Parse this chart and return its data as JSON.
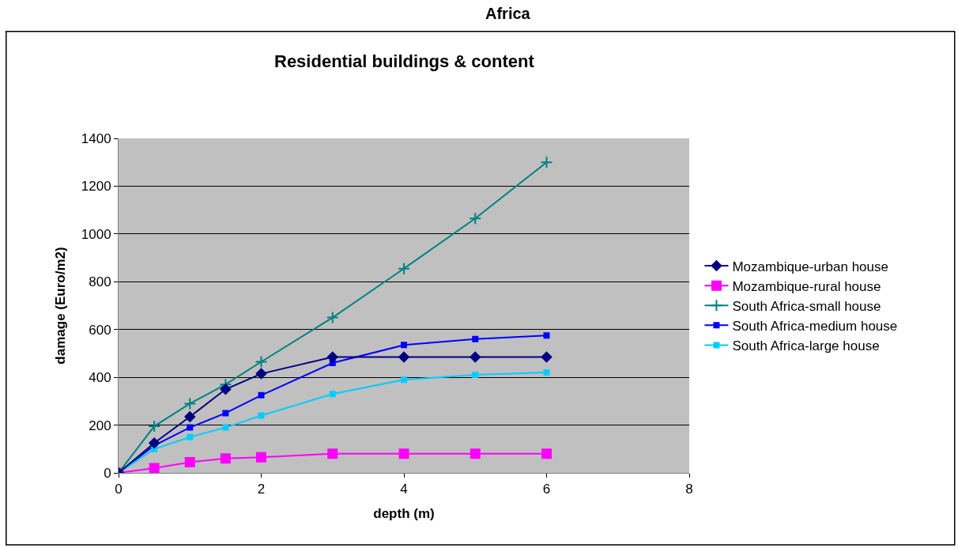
{
  "chart_data": {
    "type": "line",
    "title": "Africa",
    "subtitle": "Residential buildings & content",
    "xlabel": "depth (m)",
    "ylabel": "damage (Euro/m2)",
    "x": [
      0,
      0.5,
      1,
      1.5,
      2,
      3,
      4,
      5,
      6
    ],
    "series": [
      {
        "name": "Mozambique-urban house",
        "color": "#000080",
        "marker": "diamond",
        "values": [
          0,
          125,
          235,
          350,
          415,
          485,
          485,
          485,
          485
        ]
      },
      {
        "name": "Mozambique-rural house",
        "color": "#ff00ff",
        "marker": "square",
        "values": [
          0,
          20,
          45,
          60,
          65,
          80,
          80,
          80,
          80
        ]
      },
      {
        "name": "South Africa-small house",
        "color": "#008080",
        "marker": "cross",
        "values": [
          0,
          195,
          290,
          370,
          465,
          650,
          855,
          1065,
          1300
        ]
      },
      {
        "name": "South Africa-medium house",
        "color": "#0000ff",
        "marker": "square",
        "values": [
          0,
          115,
          190,
          250,
          325,
          460,
          535,
          560,
          575
        ]
      },
      {
        "name": "South Africa-large house",
        "color": "#00ccff",
        "marker": "square",
        "values": [
          0,
          100,
          150,
          190,
          240,
          330,
          390,
          410,
          420
        ]
      }
    ],
    "xlim": [
      0,
      8
    ],
    "xticks": [
      0,
      2,
      4,
      6,
      8
    ],
    "ylim": [
      0,
      1400
    ],
    "yticks": [
      0,
      200,
      400,
      600,
      800,
      1000,
      1200,
      1400
    ],
    "grid": "y",
    "legend": "right",
    "line_style": "solid"
  }
}
